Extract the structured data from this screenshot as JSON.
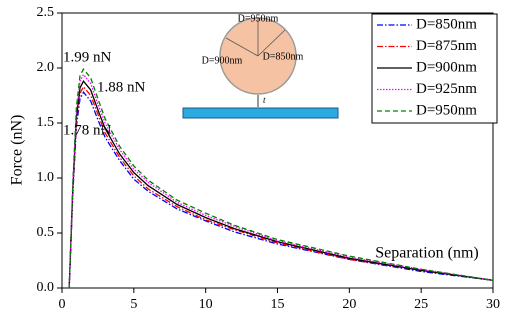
{
  "chart_data": {
    "type": "line",
    "x_label": "Separation (nm)",
    "y_label": "Force (nN)",
    "x": [
      0.5,
      0.75,
      1,
      1.25,
      1.5,
      2,
      2.5,
      3,
      4,
      5,
      6,
      8,
      10,
      12,
      15,
      20,
      25,
      30
    ],
    "series": [
      {
        "name": "D=850nm",
        "color": "#0000ff",
        "dash": "6,2,1.5,2",
        "values": [
          0,
          0.85,
          1.47,
          1.72,
          1.78,
          1.7,
          1.53,
          1.37,
          1.16,
          0.99,
          0.88,
          0.72,
          0.61,
          0.51,
          0.4,
          0.26,
          0.15,
          0.07
        ]
      },
      {
        "name": "D=875nm",
        "color": "#ff0000",
        "dash": "6,2,1.5,2",
        "values": [
          0,
          0.88,
          1.51,
          1.77,
          1.83,
          1.75,
          1.58,
          1.41,
          1.19,
          1.02,
          0.9,
          0.74,
          0.62,
          0.53,
          0.41,
          0.26,
          0.16,
          0.07
        ]
      },
      {
        "name": "D=900nm",
        "color": "#000000",
        "dash": "none",
        "values": [
          0,
          0.9,
          1.55,
          1.82,
          1.88,
          1.8,
          1.62,
          1.45,
          1.22,
          1.05,
          0.93,
          0.76,
          0.64,
          0.54,
          0.42,
          0.27,
          0.16,
          0.07
        ]
      },
      {
        "name": "D=925nm",
        "color": "#ff00ff",
        "dash": "1.5,1.5",
        "values": [
          0,
          0.93,
          1.6,
          1.88,
          1.94,
          1.86,
          1.67,
          1.5,
          1.26,
          1.08,
          0.96,
          0.78,
          0.66,
          0.56,
          0.43,
          0.28,
          0.17,
          0.07
        ]
      },
      {
        "name": "D=950nm",
        "color": "#008000",
        "dash": "5,3",
        "values": [
          0,
          0.95,
          1.64,
          1.93,
          1.99,
          1.91,
          1.72,
          1.54,
          1.29,
          1.11,
          0.98,
          0.8,
          0.68,
          0.57,
          0.44,
          0.29,
          0.17,
          0.07
        ]
      }
    ],
    "xlim": [
      0,
      30
    ],
    "ylim": [
      0,
      2.5
    ],
    "xticks": [
      0,
      5,
      10,
      15,
      20,
      25,
      30
    ],
    "yticks": [
      {
        "value": 0,
        "label": "0.0"
      },
      0.5,
      {
        "value": 1,
        "label": "1.0"
      },
      1.5,
      {
        "value": 2,
        "label": "2.0"
      },
      2.5
    ],
    "annotations": [
      "1.99 nN",
      "1.88 nN",
      "1.78 nN"
    ],
    "inset_labels": [
      "D=950nm",
      "D=900nm",
      "D=850nm",
      "t"
    ]
  }
}
